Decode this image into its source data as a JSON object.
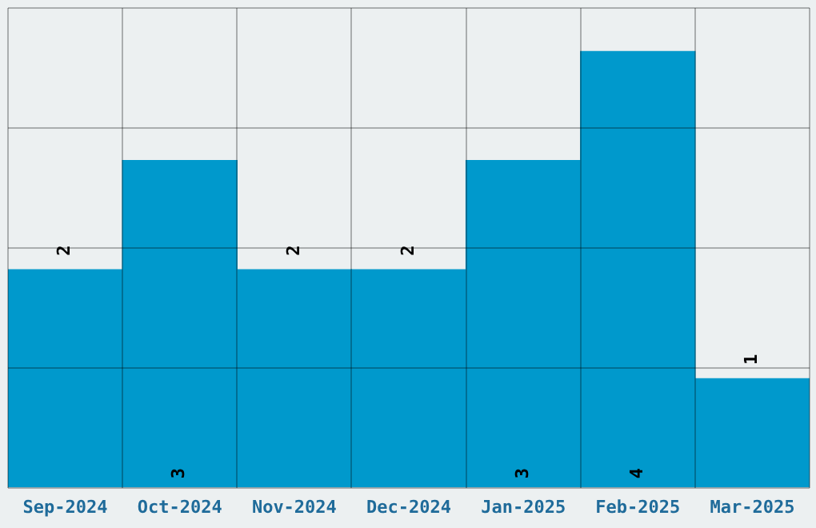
{
  "chart_data": {
    "type": "bar",
    "categories": [
      "Sep-2024",
      "Oct-2024",
      "Nov-2024",
      "Dec-2024",
      "Jan-2025",
      "Feb-2025",
      "Mar-2025"
    ],
    "values": [
      2,
      3,
      2,
      2,
      3,
      4,
      1
    ],
    "color": "#0099cc",
    "ylim": [
      0,
      4.4
    ],
    "yticks": [
      {
        "value": 0,
        "label": null
      },
      {
        "value": 1.1,
        "label": null
      },
      {
        "value": 2.2,
        "label": null
      },
      {
        "value": 3.3,
        "label": null
      },
      {
        "value": 4.4,
        "label": null
      }
    ],
    "tick_labels": "x",
    "grid": true,
    "data_labels": true
  }
}
